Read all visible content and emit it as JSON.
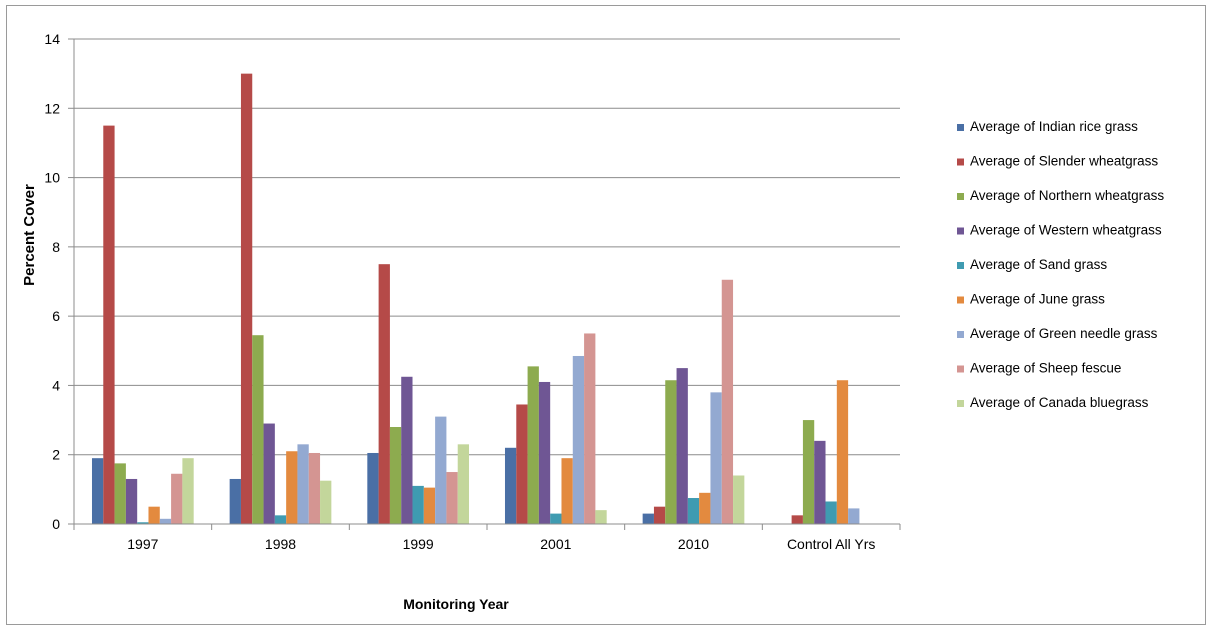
{
  "chart_data": {
    "type": "bar",
    "title": "",
    "xlabel": "Monitoring Year",
    "ylabel": "Percent Cover",
    "ylim": [
      0,
      14
    ],
    "yticks": [
      "0",
      "2",
      "4",
      "6",
      "8",
      "10",
      "12",
      "14"
    ],
    "grid": true,
    "legend_position": "right",
    "categories": [
      "1997",
      "1998",
      "1999",
      "2001",
      "2010",
      "Control All Yrs"
    ],
    "series": [
      {
        "name": "Average of Indian rice grass",
        "color": "#4a6fa5",
        "values": [
          1.9,
          1.3,
          2.05,
          2.2,
          0.3,
          0
        ]
      },
      {
        "name": "Average of Slender wheatgrass",
        "color": "#b54a48",
        "values": [
          11.5,
          13.0,
          7.5,
          3.45,
          0.5,
          0.25
        ]
      },
      {
        "name": "Average of Northern wheatgrass",
        "color": "#8dab4f",
        "values": [
          1.75,
          5.45,
          2.8,
          4.55,
          4.15,
          3.0
        ]
      },
      {
        "name": "Average of Western wheatgrass",
        "color": "#6f5694",
        "values": [
          1.3,
          2.9,
          4.25,
          4.1,
          4.5,
          2.4
        ]
      },
      {
        "name": "Average of Sand grass",
        "color": "#3f9bb1",
        "values": [
          0.05,
          0.25,
          1.1,
          0.3,
          0.75,
          0.65
        ]
      },
      {
        "name": "Average of June grass",
        "color": "#e38a3f",
        "values": [
          0.5,
          2.1,
          1.05,
          1.9,
          0.9,
          4.15
        ]
      },
      {
        "name": "Average of Green needle grass",
        "color": "#93a9d1",
        "values": [
          0.15,
          2.3,
          3.1,
          4.85,
          3.8,
          0.45
        ]
      },
      {
        "name": "Average of Sheep fescue",
        "color": "#d49592",
        "values": [
          1.45,
          2.05,
          1.5,
          5.5,
          7.05,
          0
        ]
      },
      {
        "name": "Average of Canada bluegrass",
        "color": "#c3d69b",
        "values": [
          1.9,
          1.25,
          2.3,
          0.4,
          1.4,
          0
        ]
      }
    ]
  }
}
